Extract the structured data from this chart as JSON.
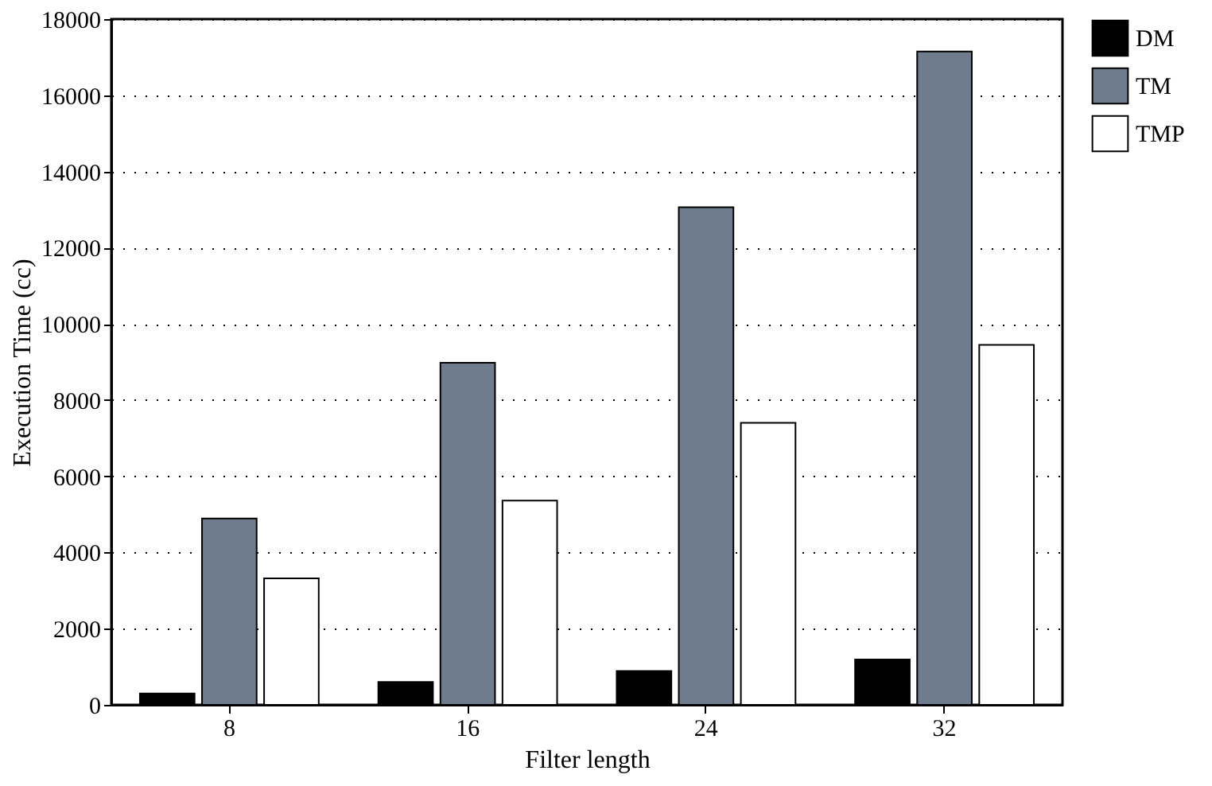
{
  "chart_data": {
    "type": "bar",
    "xlabel": "Filter length",
    "ylabel": "Execution Time (cc)",
    "categories": [
      "8",
      "16",
      "24",
      "32"
    ],
    "series": [
      {
        "name": "DM",
        "color": "#000000",
        "values": [
          300,
          600,
          890,
          1190
        ]
      },
      {
        "name": "TM",
        "color": "#6f7c8e",
        "values": [
          4890,
          8980,
          13060,
          17150
        ]
      },
      {
        "name": "TMP",
        "color": "#ffffff",
        "values": [
          3320,
          5360,
          7400,
          9450
        ]
      }
    ],
    "ylim": [
      0,
      18000
    ],
    "yticks": [
      0,
      2000,
      4000,
      6000,
      8000,
      10000,
      12000,
      14000,
      16000,
      18000
    ],
    "grid": "y",
    "legend": "right"
  }
}
